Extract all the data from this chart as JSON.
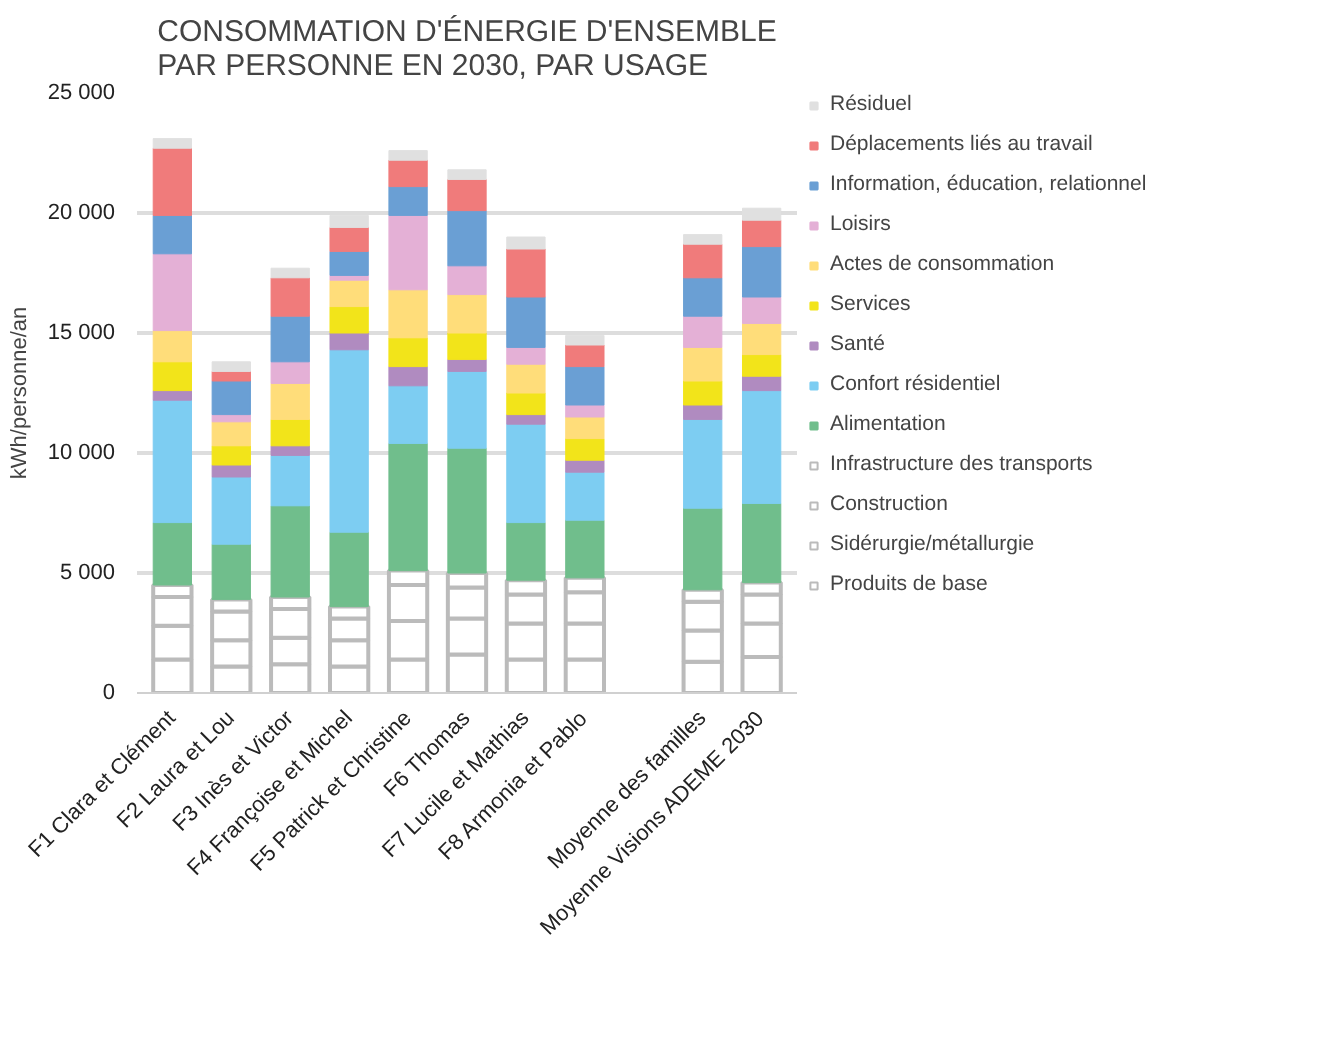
{
  "chart_data": {
    "type": "bar",
    "stacked": true,
    "title": "CONSOMMATION D'ÉNERGIE D'ENSEMBLE\nPAR PERSONNE EN 2030, PAR USAGE",
    "ylabel": "kWh/personne/an",
    "categories": [
      "F1 Clara et Clément",
      "F2 Laura et Lou",
      "F3 Inès et Victor",
      "F4 Françoise et Michel",
      "F5 Patrick et Christine",
      "F6 Thomas",
      "F7 Lucile et Mathias",
      "F8 Armonia et Pablo",
      null,
      "Moyenne des familles",
      "Moyenne Visions ADEME 2030"
    ],
    "ylim": [
      0,
      25000
    ],
    "yticks": [
      {
        "value": 0,
        "label": "0"
      },
      {
        "value": 5000,
        "label": "5 000"
      },
      {
        "value": 10000,
        "label": "10 000"
      },
      {
        "value": 15000,
        "label": "15 000"
      },
      {
        "value": 20000,
        "label": "20 000"
      },
      {
        "value": 25000,
        "label": "25 000"
      }
    ],
    "grid": "y",
    "legend": "right",
    "series": [
      {
        "name": "Produits de base",
        "color": "#ffffff",
        "values": [
          1400,
          1100,
          1200,
          1100,
          1400,
          1600,
          1400,
          1400,
          null,
          1300,
          1500
        ]
      },
      {
        "name": "Sidérurgie/métallurgie",
        "color": "#ffffff",
        "values": [
          1400,
          1100,
          1100,
          1100,
          1600,
          1500,
          1500,
          1500,
          null,
          1300,
          1400
        ]
      },
      {
        "name": "Construction",
        "color": "#ffffff",
        "values": [
          1200,
          1200,
          1200,
          900,
          1500,
          1300,
          1200,
          1300,
          null,
          1200,
          1200
        ]
      },
      {
        "name": "Infrastructure des transports",
        "color": "#ffffff",
        "values": [
          500,
          500,
          500,
          500,
          600,
          600,
          600,
          600,
          null,
          500,
          500
        ]
      },
      {
        "name": "Alimentation",
        "color": "#70be8c",
        "values": [
          2600,
          2300,
          3800,
          3100,
          5300,
          5200,
          2400,
          2400,
          null,
          3400,
          3300
        ]
      },
      {
        "name": "Confort résidentiel",
        "color": "#7dcdf2",
        "values": [
          5100,
          2800,
          2100,
          7600,
          2400,
          3200,
          4100,
          2000,
          null,
          3700,
          4700
        ]
      },
      {
        "name": "Santé",
        "color": "#b08bc0",
        "values": [
          400,
          500,
          400,
          700,
          800,
          500,
          400,
          500,
          null,
          600,
          600
        ]
      },
      {
        "name": "Services",
        "color": "#f2e41a",
        "values": [
          1200,
          800,
          1100,
          1100,
          1200,
          1100,
          900,
          900,
          null,
          1000,
          900
        ]
      },
      {
        "name": "Actes de consommation",
        "color": "#ffdd7a",
        "values": [
          1300,
          1000,
          1500,
          1100,
          2000,
          1600,
          1200,
          900,
          null,
          1400,
          1300
        ]
      },
      {
        "name": "Loisirs",
        "color": "#e4b0d6",
        "values": [
          3200,
          300,
          900,
          200,
          3100,
          1200,
          700,
          500,
          null,
          1300,
          1100
        ]
      },
      {
        "name": "Information, éducation, relationnel",
        "color": "#6a9fd4",
        "values": [
          1600,
          1400,
          1900,
          1000,
          1200,
          2300,
          2100,
          1600,
          null,
          1600,
          2100
        ]
      },
      {
        "name": "Déplacements liés au travail",
        "color": "#f07b7b",
        "values": [
          2800,
          400,
          1600,
          1000,
          1100,
          1300,
          2000,
          900,
          null,
          1400,
          1100
        ]
      },
      {
        "name": "Résiduel",
        "color": "#e0e0e0",
        "values": [
          400,
          400,
          400,
          500,
          400,
          400,
          500,
          400,
          null,
          400,
          500
        ]
      }
    ]
  }
}
